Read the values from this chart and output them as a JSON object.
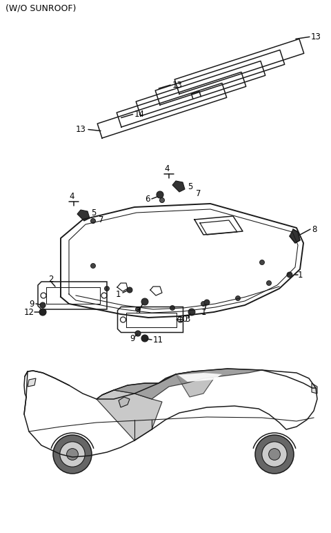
{
  "bg_color": "#ffffff",
  "lc": "#1a1a1a",
  "lw": 1.1,
  "header": "(W/O SUNROOF)",
  "figw": 4.8,
  "figh": 7.72,
  "dpi": 100
}
